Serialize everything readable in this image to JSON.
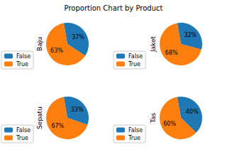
{
  "title": "Proportion Chart by Product",
  "chart_data": [
    {
      "type": "pie",
      "ylabel": "Baju",
      "categories": [
        "False",
        "True"
      ],
      "values": [
        37,
        63
      ],
      "value_labels": [
        "37%",
        "63%"
      ],
      "colors": [
        "#1f77b4",
        "#ff7f0e"
      ],
      "legend": "lower left",
      "data_labels": true
    },
    {
      "type": "pie",
      "ylabel": "Jaket",
      "categories": [
        "False",
        "True"
      ],
      "values": [
        32,
        68
      ],
      "value_labels": [
        "32%",
        "68%"
      ],
      "colors": [
        "#1f77b4",
        "#ff7f0e"
      ],
      "legend": "lower left",
      "data_labels": true
    },
    {
      "type": "pie",
      "ylabel": "Sepatu",
      "categories": [
        "False",
        "True"
      ],
      "values": [
        33,
        67
      ],
      "value_labels": [
        "33%",
        "67%"
      ],
      "colors": [
        "#1f77b4",
        "#ff7f0e"
      ],
      "legend": "lower left",
      "data_labels": true
    },
    {
      "type": "pie",
      "ylabel": "Tas",
      "categories": [
        "False",
        "True"
      ],
      "values": [
        40,
        60
      ],
      "value_labels": [
        "40%",
        "60%"
      ],
      "colors": [
        "#1f77b4",
        "#ff7f0e"
      ],
      "legend": "lower left",
      "data_labels": true
    }
  ]
}
